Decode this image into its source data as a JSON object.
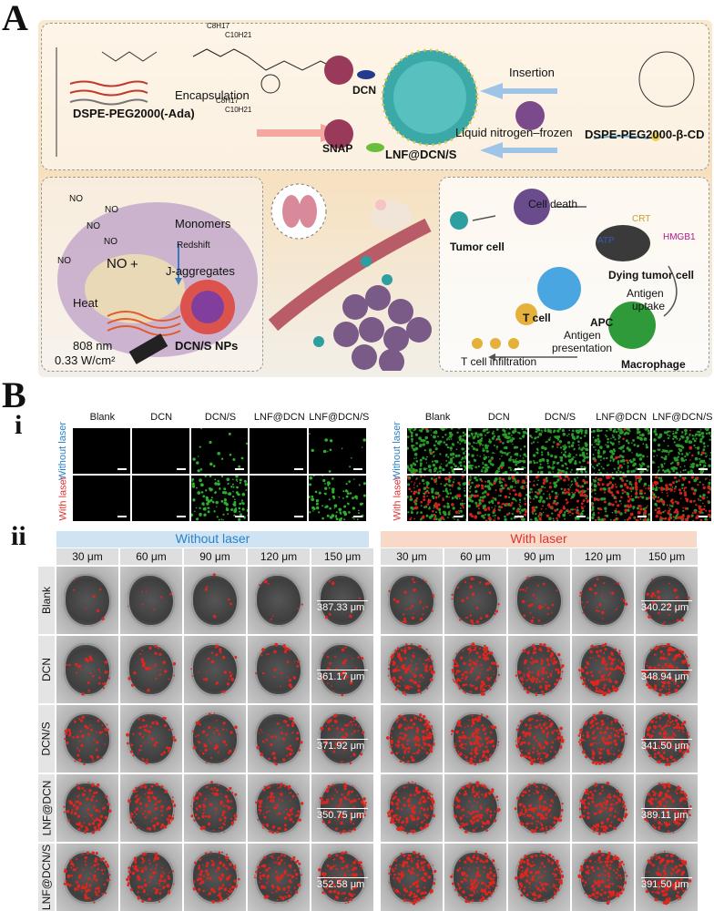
{
  "panels": {
    "A": "A",
    "B": "B",
    "i": "i",
    "ii": "ii"
  },
  "schematic": {
    "top": {
      "lipid_left": "DSPE-PEG2000(-Ada)",
      "encapsulation": "Encapsulation",
      "dcn": "DCN",
      "snap": "SNAP",
      "product": "LNF@DCN/S",
      "insertion": "Insertion",
      "freeze": "Liquid nitrogen–frozen",
      "lipid_right": "DSPE-PEG2000-β-CD",
      "chain1": "C8H17",
      "chain2": "C10H21",
      "chain3": "C8H17",
      "chain4": "C10H21"
    },
    "left": {
      "no_labels": [
        "NO",
        "NO",
        "NO",
        "NO",
        "NO"
      ],
      "no_main": "NO",
      "plus": "+",
      "monomers": "Monomers",
      "redshift": "Redshift",
      "j_aggregates": "J-aggregates",
      "heat": "Heat",
      "nps": "DCN/S NPs",
      "wavelength": "808 nm",
      "power": "0.33 W/cm²"
    },
    "right": {
      "tumor_cell": "Tumor cell",
      "cell_death": "Cell death",
      "crt": "CRT",
      "atp": "ATP",
      "hmgb1": "HMGB1",
      "dying": "Dying tumor cell",
      "antigen_uptake_1": "Antigen",
      "antigen_uptake_2": "uptake",
      "apc": "APC",
      "t_cell": "T cell",
      "antigen_pres_1": "Antigen",
      "antigen_pres_2": "presentation",
      "infiltration": "T cell infiltration",
      "macrophage": "Macrophage"
    }
  },
  "b_i": {
    "columns": [
      "Blank",
      "DCN",
      "DCN/S",
      "LNF@DCN",
      "LNF@DCN/S"
    ],
    "rows": [
      "Without laser",
      "With laser"
    ],
    "left_intensity": [
      [
        0,
        0,
        0.08,
        0,
        0.06
      ],
      [
        0,
        0,
        0.55,
        0,
        0.4
      ]
    ],
    "right_dead": [
      [
        0.02,
        0.03,
        0.02,
        0.05,
        0.04
      ],
      [
        0.5,
        0.55,
        0.6,
        0.7,
        0.85
      ]
    ]
  },
  "b_ii": {
    "without_laser": "Without laser",
    "with_laser": "With laser",
    "depths": [
      "30 μm",
      "60 μm",
      "90 μm",
      "120 μm",
      "150 μm"
    ],
    "rows": [
      "Blank",
      "DCN",
      "DCN/S",
      "LNF@DCN",
      "LNF@DCN/S"
    ],
    "without_sizes": [
      "387.33 μm",
      "361.17 μm",
      "371.92 μm",
      "350.75 μm",
      "352.58 μm"
    ],
    "with_sizes": [
      "340.22 μm",
      "348.94 μm",
      "341.50 μm",
      "389.11 μm",
      "391.50 μm"
    ],
    "red_without": [
      0.05,
      0.2,
      0.35,
      0.6,
      0.7
    ],
    "red_with": [
      0.2,
      0.85,
      0.9,
      0.85,
      0.95
    ]
  },
  "colors": {
    "green": "#2fae2f",
    "red": "#d0201c",
    "blue_header": "#2a82c9",
    "red_header": "#d33"
  }
}
